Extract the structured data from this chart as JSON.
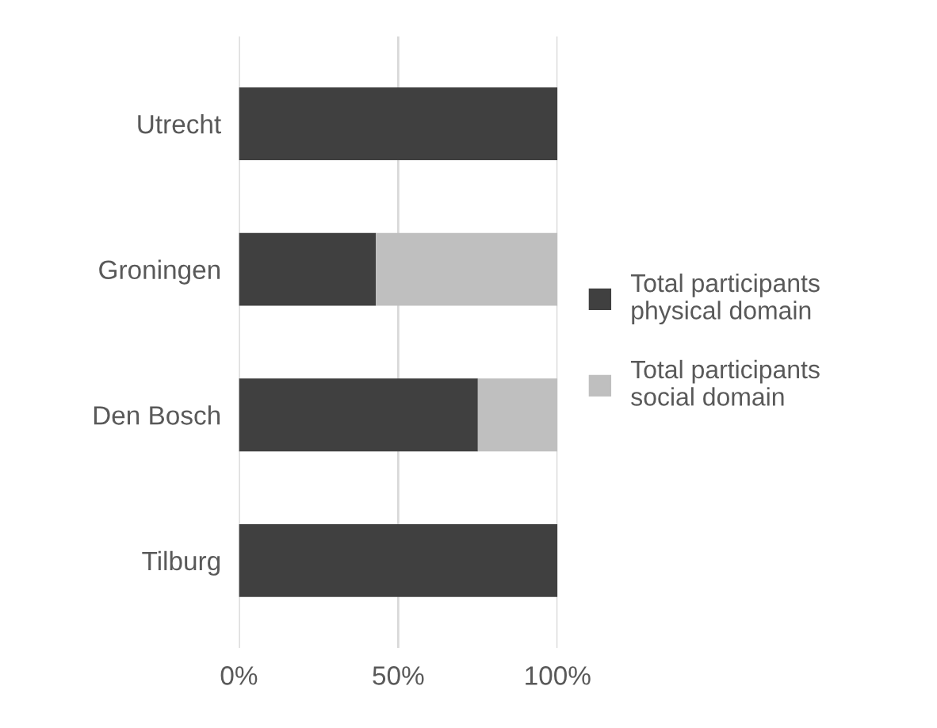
{
  "chart_data": {
    "type": "bar",
    "orientation": "horizontal",
    "stacked": true,
    "categories": [
      "Utrecht",
      "Groningen",
      "Den Bosch",
      "Tilburg"
    ],
    "series": [
      {
        "name": "Total participants physical domain",
        "color": "#404040",
        "values": [
          100,
          43,
          75,
          100
        ]
      },
      {
        "name": "Total participants social domain",
        "color": "#bfbfbf",
        "values": [
          0,
          57,
          25,
          0
        ]
      }
    ],
    "xlim": [
      0,
      100
    ],
    "xticks": [
      {
        "value": 0,
        "label": "0%"
      },
      {
        "value": 50,
        "label": "50%"
      },
      {
        "value": 100,
        "label": "100%"
      }
    ],
    "grid": "x",
    "legend": "right"
  }
}
